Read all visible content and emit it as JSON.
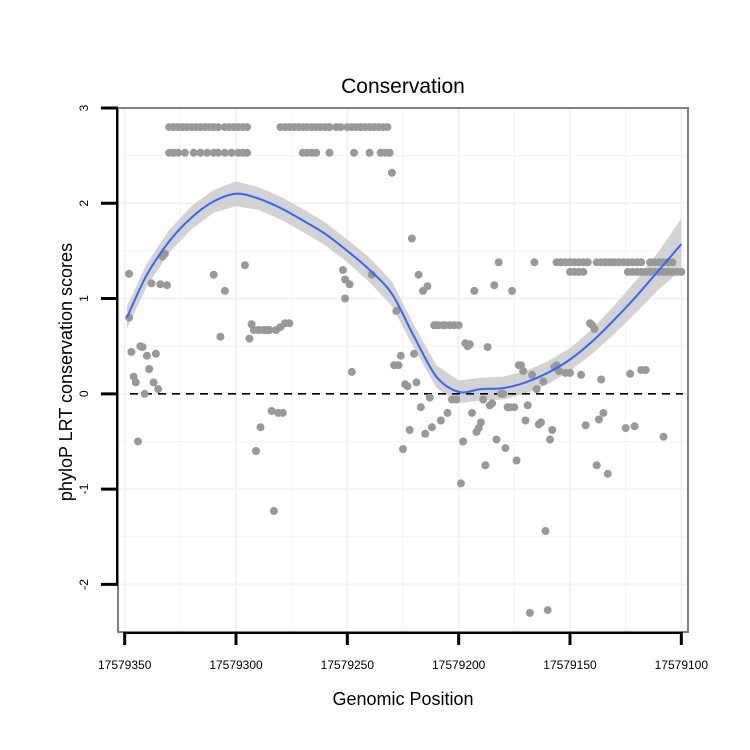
{
  "chart_data": {
    "type": "scatter",
    "title": "Conservation",
    "xlabel": "Genomic Position",
    "ylabel": "phyloP LRT conservation scores",
    "x_reversed": true,
    "xlim": [
      17579353,
      17579097
    ],
    "ylim": [
      -2.5,
      3.0
    ],
    "x_ticks": [
      17579350,
      17579300,
      17579250,
      17579200,
      17579150,
      17579100
    ],
    "x_tick_labels": [
      "17579350",
      "17579300",
      "17579250",
      "17579200",
      "17579150",
      "17579100"
    ],
    "y_ticks": [
      -2,
      -1,
      0,
      1,
      2,
      3
    ],
    "y_tick_labels": [
      "-2",
      "-1",
      "0",
      "1",
      "2",
      "3"
    ],
    "reference_line": {
      "y": 0,
      "style": "dashed",
      "color": "#000000"
    },
    "colors": {
      "points": "#999999",
      "smooth": "#3366ff",
      "ribbon": "#c8c8c8",
      "panel_border": "#7f7f7f",
      "grid": "#f2f2f2"
    },
    "smooth": {
      "x": [
        17579349,
        17579340,
        17579330,
        17579320,
        17579310,
        17579300,
        17579290,
        17579280,
        17579270,
        17579260,
        17579250,
        17579240,
        17579230,
        17579220,
        17579210,
        17579200,
        17579190,
        17579180,
        17579170,
        17579160,
        17579150,
        17579140,
        17579130,
        17579120,
        17579110,
        17579100
      ],
      "y": [
        0.8,
        1.25,
        1.6,
        1.85,
        2.02,
        2.1,
        2.05,
        1.95,
        1.82,
        1.68,
        1.5,
        1.3,
        1.05,
        0.6,
        0.18,
        0.02,
        0.05,
        0.06,
        0.12,
        0.22,
        0.36,
        0.55,
        0.78,
        1.03,
        1.3,
        1.57
      ],
      "lower": [
        0.68,
        1.13,
        1.48,
        1.73,
        1.9,
        1.97,
        1.93,
        1.83,
        1.7,
        1.56,
        1.38,
        1.17,
        0.92,
        0.48,
        0.06,
        -0.1,
        -0.07,
        -0.06,
        0.0,
        0.1,
        0.24,
        0.42,
        0.63,
        0.86,
        1.1,
        1.3
      ],
      "upper": [
        0.92,
        1.37,
        1.72,
        1.97,
        2.14,
        2.23,
        2.17,
        2.07,
        1.94,
        1.8,
        1.62,
        1.43,
        1.18,
        0.72,
        0.3,
        0.14,
        0.17,
        0.18,
        0.24,
        0.34,
        0.48,
        0.68,
        0.93,
        1.2,
        1.5,
        1.84
      ]
    },
    "points": [
      [
        17579348,
        1.26
      ],
      [
        17579348,
        0.8
      ],
      [
        17579347,
        0.44
      ],
      [
        17579346,
        0.18
      ],
      [
        17579345,
        0.12
      ],
      [
        17579344,
        -0.5
      ],
      [
        17579343,
        0.5
      ],
      [
        17579342,
        0.49
      ],
      [
        17579341,
        0.0
      ],
      [
        17579340,
        0.4
      ],
      [
        17579339,
        0.26
      ],
      [
        17579338,
        1.16
      ],
      [
        17579337,
        0.12
      ],
      [
        17579336,
        0.42
      ],
      [
        17579335,
        0.05
      ],
      [
        17579334,
        1.15
      ],
      [
        17579333,
        1.44
      ],
      [
        17579332,
        1.47
      ],
      [
        17579331,
        1.14
      ],
      [
        17579330,
        2.8
      ],
      [
        17579328,
        2.8
      ],
      [
        17579326,
        2.8
      ],
      [
        17579324,
        2.8
      ],
      [
        17579322,
        2.8
      ],
      [
        17579320,
        2.8
      ],
      [
        17579318,
        2.8
      ],
      [
        17579316,
        2.8
      ],
      [
        17579314,
        2.8
      ],
      [
        17579312,
        2.8
      ],
      [
        17579310,
        2.8
      ],
      [
        17579308,
        2.8
      ],
      [
        17579305,
        2.8
      ],
      [
        17579303,
        2.8
      ],
      [
        17579301,
        2.8
      ],
      [
        17579299,
        2.8
      ],
      [
        17579297,
        2.8
      ],
      [
        17579295,
        2.8
      ],
      [
        17579330,
        2.53
      ],
      [
        17579328,
        2.53
      ],
      [
        17579326,
        2.53
      ],
      [
        17579323,
        2.53
      ],
      [
        17579319,
        2.53
      ],
      [
        17579316,
        2.53
      ],
      [
        17579313,
        2.53
      ],
      [
        17579310,
        2.53
      ],
      [
        17579308,
        2.53
      ],
      [
        17579305,
        2.53
      ],
      [
        17579302,
        2.53
      ],
      [
        17579299,
        2.53
      ],
      [
        17579297,
        2.53
      ],
      [
        17579295,
        2.53
      ],
      [
        17579310,
        1.25
      ],
      [
        17579307,
        0.6
      ],
      [
        17579305,
        1.08
      ],
      [
        17579296,
        1.35
      ],
      [
        17579294,
        0.58
      ],
      [
        17579293,
        0.73
      ],
      [
        17579292,
        0.67
      ],
      [
        17579291,
        -0.6
      ],
      [
        17579290,
        0.67
      ],
      [
        17579289,
        -0.35
      ],
      [
        17579288,
        0.67
      ],
      [
        17579287,
        0.67
      ],
      [
        17579286,
        0.67
      ],
      [
        17579285,
        0.67
      ],
      [
        17579284,
        -0.18
      ],
      [
        17579283,
        -1.23
      ],
      [
        17579282,
        0.67
      ],
      [
        17579281,
        -0.2
      ],
      [
        17579280,
        0.7
      ],
      [
        17579279,
        -0.2
      ],
      [
        17579278,
        0.74
      ],
      [
        17579276,
        0.74
      ],
      [
        17579280,
        2.8
      ],
      [
        17579278,
        2.8
      ],
      [
        17579276,
        2.8
      ],
      [
        17579274,
        2.8
      ],
      [
        17579272,
        2.8
      ],
      [
        17579270,
        2.8
      ],
      [
        17579268,
        2.8
      ],
      [
        17579266,
        2.8
      ],
      [
        17579264,
        2.8
      ],
      [
        17579262,
        2.8
      ],
      [
        17579260,
        2.8
      ],
      [
        17579258,
        2.8
      ],
      [
        17579255,
        2.8
      ],
      [
        17579253,
        2.8
      ],
      [
        17579250,
        2.8
      ],
      [
        17579248,
        2.8
      ],
      [
        17579246,
        2.8
      ],
      [
        17579244,
        2.8
      ],
      [
        17579242,
        2.8
      ],
      [
        17579240,
        2.8
      ],
      [
        17579238,
        2.8
      ],
      [
        17579236,
        2.8
      ],
      [
        17579234,
        2.8
      ],
      [
        17579232,
        2.8
      ],
      [
        17579270,
        2.53
      ],
      [
        17579268,
        2.53
      ],
      [
        17579266,
        2.53
      ],
      [
        17579264,
        2.53
      ],
      [
        17579258,
        2.53
      ],
      [
        17579247,
        2.53
      ],
      [
        17579240,
        2.53
      ],
      [
        17579235,
        2.53
      ],
      [
        17579233,
        2.53
      ],
      [
        17579231,
        2.53
      ],
      [
        17579230,
        2.32
      ],
      [
        17579252,
        1.3
      ],
      [
        17579251,
        1.2
      ],
      [
        17579251,
        1.0
      ],
      [
        17579249,
        1.15
      ],
      [
        17579248,
        0.23
      ],
      [
        17579239,
        1.25
      ],
      [
        17579229,
        0.3
      ],
      [
        17579228,
        0.87
      ],
      [
        17579227,
        0.3
      ],
      [
        17579226,
        0.4
      ],
      [
        17579225,
        -0.58
      ],
      [
        17579224,
        0.1
      ],
      [
        17579223,
        0.08
      ],
      [
        17579222,
        -0.38
      ],
      [
        17579221,
        1.63
      ],
      [
        17579220,
        0.42
      ],
      [
        17579219,
        0.12
      ],
      [
        17579218,
        1.25
      ],
      [
        17579217,
        -0.14
      ],
      [
        17579216,
        1.08
      ],
      [
        17579215,
        -0.42
      ],
      [
        17579214,
        1.13
      ],
      [
        17579213,
        -0.04
      ],
      [
        17579212,
        -0.35
      ],
      [
        17579211,
        0.72
      ],
      [
        17579210,
        0.72
      ],
      [
        17579209,
        0.72
      ],
      [
        17579208,
        -0.28
      ],
      [
        17579207,
        0.72
      ],
      [
        17579206,
        0.72
      ],
      [
        17579205,
        -0.2
      ],
      [
        17579204,
        0.72
      ],
      [
        17579203,
        -0.06
      ],
      [
        17579202,
        0.72
      ],
      [
        17579201,
        -0.06
      ],
      [
        17579200,
        0.72
      ],
      [
        17579199,
        -0.94
      ],
      [
        17579198,
        -0.5
      ],
      [
        17579197,
        0.53
      ],
      [
        17579196,
        0.5
      ],
      [
        17579195,
        0.52
      ],
      [
        17579194,
        -0.2
      ],
      [
        17579193,
        1.08
      ],
      [
        17579192,
        -0.4
      ],
      [
        17579191,
        -0.36
      ],
      [
        17579190,
        -0.3
      ],
      [
        17579189,
        -0.06
      ],
      [
        17579188,
        -0.75
      ],
      [
        17579187,
        0.49
      ],
      [
        17579186,
        -0.12
      ],
      [
        17579185,
        -0.1
      ],
      [
        17579184,
        1.14
      ],
      [
        17579183,
        -0.48
      ],
      [
        17579182,
        1.38
      ],
      [
        17579181,
        0.0
      ],
      [
        17579180,
        0.0
      ],
      [
        17579179,
        -0.57
      ],
      [
        17579178,
        -0.14
      ],
      [
        17579177,
        -0.14
      ],
      [
        17579176,
        1.08
      ],
      [
        17579175,
        -0.14
      ],
      [
        17579174,
        -0.7
      ],
      [
        17579173,
        0.3
      ],
      [
        17579172,
        0.3
      ],
      [
        17579171,
        0.24
      ],
      [
        17579170,
        -0.28
      ],
      [
        17579169,
        -0.12
      ],
      [
        17579168,
        -2.3
      ],
      [
        17579167,
        0.2
      ],
      [
        17579166,
        1.38
      ],
      [
        17579165,
        0.05
      ],
      [
        17579164,
        -0.32
      ],
      [
        17579163,
        -0.3
      ],
      [
        17579162,
        0.13
      ],
      [
        17579161,
        -1.44
      ],
      [
        17579160,
        -2.27
      ],
      [
        17579159,
        -0.48
      ],
      [
        17579158,
        -0.38
      ],
      [
        17579157,
        0.28
      ],
      [
        17579156,
        0.3
      ],
      [
        17579155,
        0.24
      ],
      [
        17579156,
        1.38
      ],
      [
        17579154,
        1.38
      ],
      [
        17579152,
        1.38
      ],
      [
        17579150,
        1.38
      ],
      [
        17579148,
        1.38
      ],
      [
        17579146,
        1.38
      ],
      [
        17579144,
        1.38
      ],
      [
        17579142,
        1.38
      ],
      [
        17579138,
        1.38
      ],
      [
        17579136,
        1.38
      ],
      [
        17579134,
        1.38
      ],
      [
        17579132,
        1.38
      ],
      [
        17579130,
        1.38
      ],
      [
        17579128,
        1.38
      ],
      [
        17579126,
        1.38
      ],
      [
        17579124,
        1.38
      ],
      [
        17579122,
        1.38
      ],
      [
        17579120,
        1.38
      ],
      [
        17579118,
        1.38
      ],
      [
        17579114,
        1.38
      ],
      [
        17579112,
        1.38
      ],
      [
        17579110,
        1.38
      ],
      [
        17579108,
        1.38
      ],
      [
        17579106,
        1.38
      ],
      [
        17579104,
        1.38
      ],
      [
        17579150,
        1.28
      ],
      [
        17579148,
        1.28
      ],
      [
        17579146,
        1.28
      ],
      [
        17579144,
        1.28
      ],
      [
        17579124,
        1.28
      ],
      [
        17579122,
        1.28
      ],
      [
        17579120,
        1.28
      ],
      [
        17579118,
        1.28
      ],
      [
        17579116,
        1.28
      ],
      [
        17579114,
        1.28
      ],
      [
        17579112,
        1.28
      ],
      [
        17579110,
        1.28
      ],
      [
        17579108,
        1.28
      ],
      [
        17579106,
        1.28
      ],
      [
        17579104,
        1.28
      ],
      [
        17579102,
        1.28
      ],
      [
        17579100,
        1.28
      ],
      [
        17579152,
        0.22
      ],
      [
        17579150,
        0.22
      ],
      [
        17579145,
        0.2
      ],
      [
        17579143,
        -0.33
      ],
      [
        17579141,
        0.74
      ],
      [
        17579140,
        0.72
      ],
      [
        17579139,
        0.68
      ],
      [
        17579138,
        -0.75
      ],
      [
        17579137,
        -0.27
      ],
      [
        17579136,
        0.15
      ],
      [
        17579135,
        -0.2
      ],
      [
        17579133,
        -0.84
      ],
      [
        17579125,
        -0.36
      ],
      [
        17579123,
        0.21
      ],
      [
        17579121,
        -0.34
      ],
      [
        17579118,
        0.25
      ],
      [
        17579116,
        0.25
      ],
      [
        17579108,
        -0.45
      ]
    ]
  }
}
